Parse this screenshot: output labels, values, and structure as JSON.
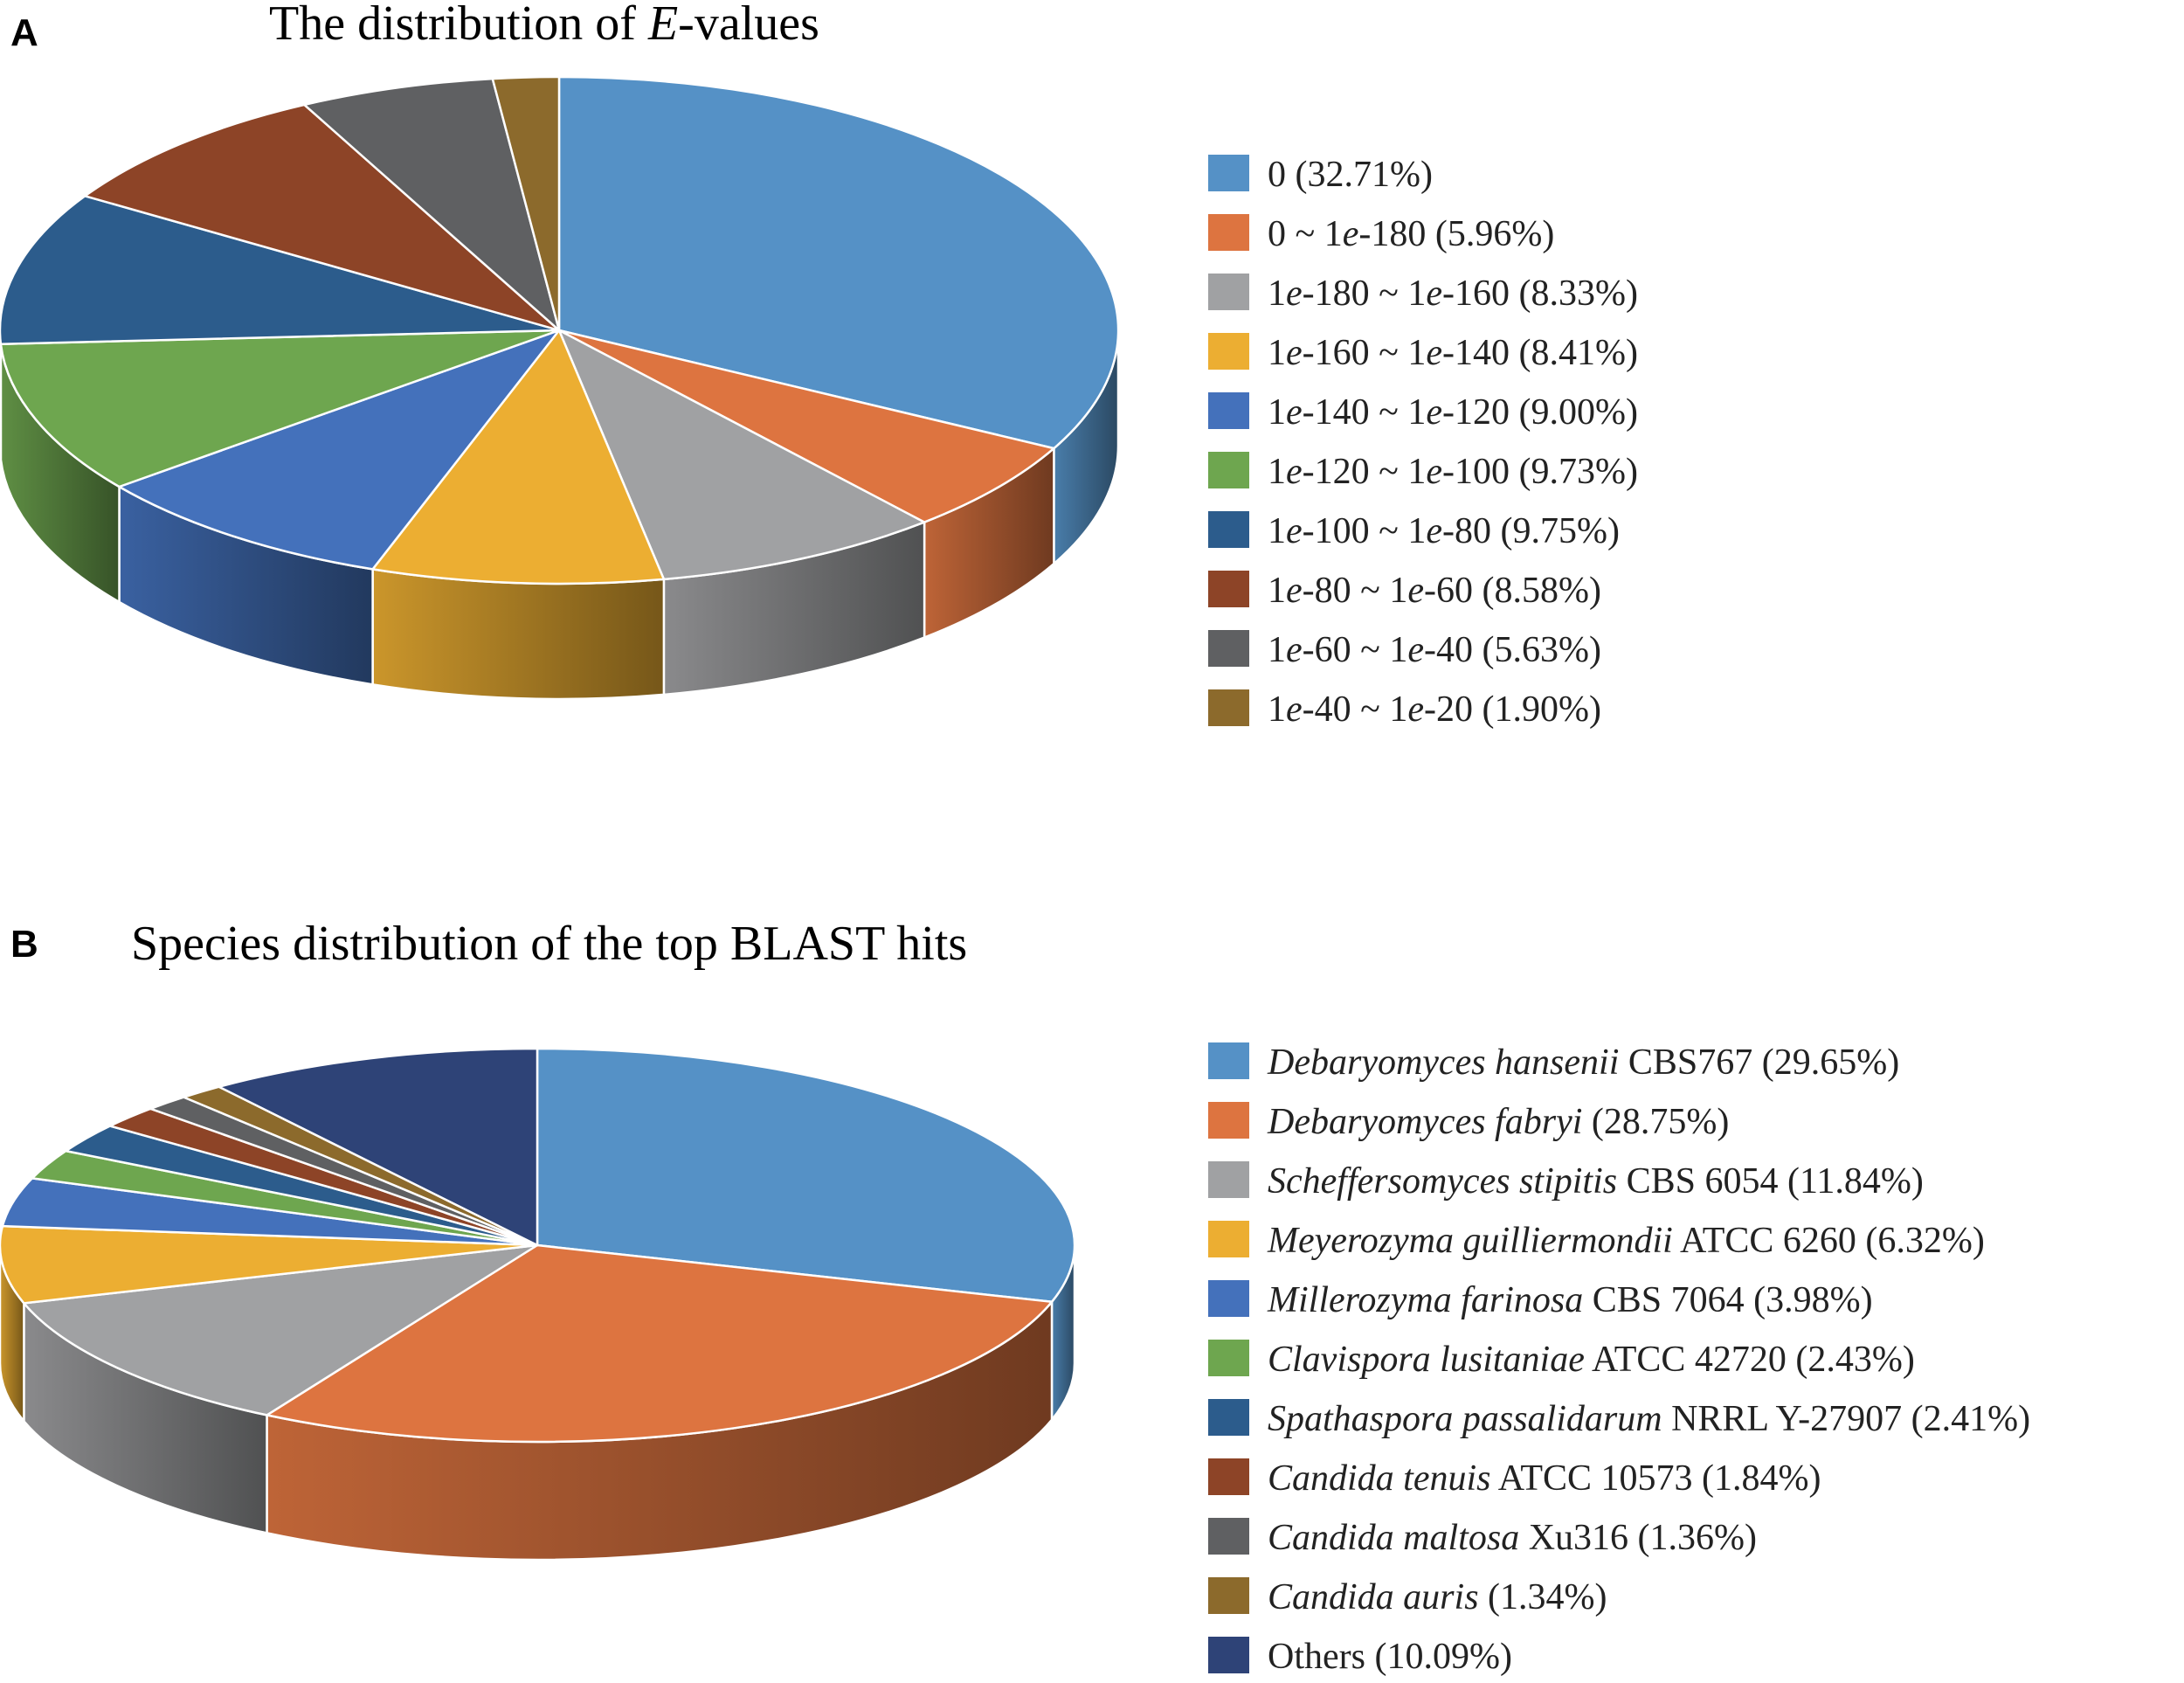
{
  "chart_data": [
    {
      "type": "pie",
      "panel": "A",
      "title": "The distribution of E-values",
      "title_parts": [
        {
          "text": "The distribution of ",
          "italic": false
        },
        {
          "text": "E",
          "italic": true
        },
        {
          "text": "-values",
          "italic": false
        }
      ],
      "series": [
        {
          "label": "0 (32.71%)",
          "parts": [
            {
              "t": "0 (32.71%)",
              "i": false
            }
          ],
          "value": 32.71,
          "color": "#5591c6"
        },
        {
          "label": "0 ~ 1e-180 (5.96%)",
          "parts": [
            {
              "t": "0 ~ 1",
              "i": false
            },
            {
              "t": "e",
              "i": true
            },
            {
              "t": "-180 (5.96%)",
              "i": false
            }
          ],
          "value": 5.96,
          "color": "#dd7440"
        },
        {
          "label": "1e-180 ~ 1e-160 (8.33%)",
          "parts": [
            {
              "t": "1",
              "i": false
            },
            {
              "t": "e",
              "i": true
            },
            {
              "t": "-180 ~ 1",
              "i": false
            },
            {
              "t": "e",
              "i": true
            },
            {
              "t": "-160 (8.33%)",
              "i": false
            }
          ],
          "value": 8.33,
          "color": "#a0a1a3"
        },
        {
          "label": "1e-160 ~ 1e-140 (8.41%)",
          "parts": [
            {
              "t": "1",
              "i": false
            },
            {
              "t": "e",
              "i": true
            },
            {
              "t": "-160 ~ 1",
              "i": false
            },
            {
              "t": "e",
              "i": true
            },
            {
              "t": "-140 (8.41%)",
              "i": false
            }
          ],
          "value": 8.41,
          "color": "#ecae32"
        },
        {
          "label": "1e-140 ~ 1e-120 (9.00%)",
          "parts": [
            {
              "t": "1",
              "i": false
            },
            {
              "t": "e",
              "i": true
            },
            {
              "t": "-140 ~ 1",
              "i": false
            },
            {
              "t": "e",
              "i": true
            },
            {
              "t": "-120 (9.00%)",
              "i": false
            }
          ],
          "value": 9.0,
          "color": "#4471bb"
        },
        {
          "label": "1e-120 ~ 1e-100 (9.73%)",
          "parts": [
            {
              "t": "1",
              "i": false
            },
            {
              "t": "e",
              "i": true
            },
            {
              "t": "-120 ~ 1",
              "i": false
            },
            {
              "t": "e",
              "i": true
            },
            {
              "t": "-100 (9.73%)",
              "i": false
            }
          ],
          "value": 9.73,
          "color": "#6ea64f"
        },
        {
          "label": "1e-100 ~ 1e-80 (9.75%)",
          "parts": [
            {
              "t": "1",
              "i": false
            },
            {
              "t": "e",
              "i": true
            },
            {
              "t": "-100 ~ 1",
              "i": false
            },
            {
              "t": "e",
              "i": true
            },
            {
              "t": "-80 (9.75%)",
              "i": false
            }
          ],
          "value": 9.75,
          "color": "#2c5c8c"
        },
        {
          "label": "1e-80 ~ 1e-60 (8.58%)",
          "parts": [
            {
              "t": "1",
              "i": false
            },
            {
              "t": "e",
              "i": true
            },
            {
              "t": "-80 ~ 1",
              "i": false
            },
            {
              "t": "e",
              "i": true
            },
            {
              "t": "-60 (8.58%)",
              "i": false
            }
          ],
          "value": 8.58,
          "color": "#8d4427"
        },
        {
          "label": "1e-60 ~ 1e-40 (5.63%)",
          "parts": [
            {
              "t": "1",
              "i": false
            },
            {
              "t": "e",
              "i": true
            },
            {
              "t": "-60 ~ 1",
              "i": false
            },
            {
              "t": "e",
              "i": true
            },
            {
              "t": "-40 (5.63%)",
              "i": false
            }
          ],
          "value": 5.63,
          "color": "#5f6062"
        },
        {
          "label": "1e-40 ~ 1e-20 (1.90%)",
          "parts": [
            {
              "t": "1",
              "i": false
            },
            {
              "t": "e",
              "i": true
            },
            {
              "t": "-40 ~ 1",
              "i": false
            },
            {
              "t": "e",
              "i": true
            },
            {
              "t": "-20 (1.90%)",
              "i": false
            }
          ],
          "value": 1.9,
          "color": "#8c6a2c"
        }
      ]
    },
    {
      "type": "pie",
      "panel": "B",
      "title": "Species distribution of the top BLAST hits",
      "title_parts": [
        {
          "text": "Species distribution of the top BLAST hits",
          "italic": false
        }
      ],
      "series": [
        {
          "label": "Debaryomyces hansenii CBS767 (29.65%)",
          "parts": [
            {
              "t": "Debaryomyces hansenii",
              "i": true
            },
            {
              "t": " CBS767 (29.65%)",
              "i": false
            }
          ],
          "value": 29.65,
          "color": "#5591c6"
        },
        {
          "label": "Debaryomyces fabryi (28.75%)",
          "parts": [
            {
              "t": "Debaryomyces fabryi",
              "i": true
            },
            {
              "t": " (28.75%)",
              "i": false
            }
          ],
          "value": 28.75,
          "color": "#dd7440"
        },
        {
          "label": "Scheffersomyces stipitis CBS 6054 (11.84%)",
          "parts": [
            {
              "t": "Scheffersomyces stipitis",
              "i": true
            },
            {
              "t": " CBS 6054 (11.84%)",
              "i": false
            }
          ],
          "value": 11.84,
          "color": "#a0a1a3"
        },
        {
          "label": "Meyerozyma guilliermondii ATCC 6260 (6.32%)",
          "parts": [
            {
              "t": "Meyerozyma guilliermondii",
              "i": true
            },
            {
              "t": " ATCC 6260 (6.32%)",
              "i": false
            }
          ],
          "value": 6.32,
          "color": "#ecae32"
        },
        {
          "label": "Millerozyma farinosa CBS 7064 (3.98%)",
          "parts": [
            {
              "t": "Millerozyma farinosa",
              "i": true
            },
            {
              "t": " CBS 7064 (3.98%)",
              "i": false
            }
          ],
          "value": 3.98,
          "color": "#4471bb"
        },
        {
          "label": "Clavispora lusitaniae ATCC 42720 (2.43%)",
          "parts": [
            {
              "t": "Clavispora lusitaniae",
              "i": true
            },
            {
              "t": " ATCC 42720 (2.43%)",
              "i": false
            }
          ],
          "value": 2.43,
          "color": "#6ea64f"
        },
        {
          "label": "Spathaspora passalidarum NRRL Y-27907 (2.41%)",
          "parts": [
            {
              "t": "Spathaspora passalidarum",
              "i": true
            },
            {
              "t": " NRRL Y-27907 (2.41%)",
              "i": false
            }
          ],
          "value": 2.41,
          "color": "#2c5c8c"
        },
        {
          "label": "Candida tenuis ATCC 10573 (1.84%)",
          "parts": [
            {
              "t": "Candida tenuis",
              "i": true
            },
            {
              "t": " ATCC 10573 (1.84%)",
              "i": false
            }
          ],
          "value": 1.84,
          "color": "#8d4427"
        },
        {
          "label": "Candida maltosa Xu316 (1.36%)",
          "parts": [
            {
              "t": "Candida maltosa",
              "i": true
            },
            {
              "t": " Xu316 (1.36%)",
              "i": false
            }
          ],
          "value": 1.36,
          "color": "#5f6062"
        },
        {
          "label": "Candida auris (1.34%)",
          "parts": [
            {
              "t": "Candida auris",
              "i": true
            },
            {
              "t": " (1.34%)",
              "i": false
            }
          ],
          "value": 1.34,
          "color": "#8c6a2c"
        },
        {
          "label": "Others (10.09%)",
          "parts": [
            {
              "t": "Others (10.09%)",
              "i": false
            }
          ],
          "value": 10.09,
          "color": "#2e4377"
        }
      ]
    }
  ]
}
